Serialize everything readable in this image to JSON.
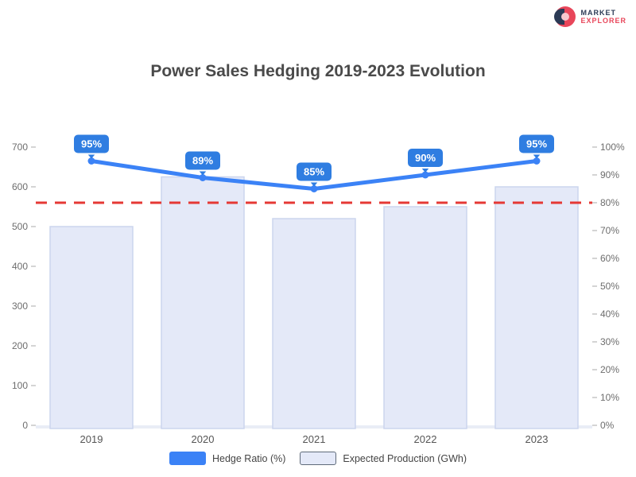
{
  "logo": {
    "line1": "MARKET",
    "line2": "EXPLORER"
  },
  "chart_data": {
    "type": "bar",
    "title": "Power Sales Hedging 2019-2023 Evolution",
    "categories": [
      "2019",
      "2020",
      "2021",
      "2022",
      "2023"
    ],
    "series": [
      {
        "name": "Expected Production (GWh)",
        "type": "bar",
        "axis": "left",
        "values": [
          500,
          625,
          520,
          550,
          600
        ]
      },
      {
        "name": "Hedge Ratio (%)",
        "type": "line",
        "axis": "right",
        "values": [
          95,
          89,
          85,
          90,
          95
        ],
        "point_labels": [
          "95%",
          "89%",
          "85%",
          "90%",
          "95%"
        ]
      }
    ],
    "left_axis": {
      "min": 0,
      "max": 700,
      "step": 100,
      "ticks": [
        0,
        100,
        200,
        300,
        400,
        500,
        600,
        700
      ]
    },
    "right_axis": {
      "min": 0,
      "max": 100,
      "step": 10,
      "ticks": [
        0,
        10,
        20,
        30,
        40,
        50,
        60,
        70,
        80,
        90,
        100
      ],
      "tick_labels": [
        "0%",
        "10%",
        "20%",
        "30%",
        "40%",
        "50%",
        "60%",
        "70%",
        "80%",
        "90%",
        "100%"
      ]
    },
    "threshold": {
      "axis": "right",
      "value": 80,
      "style": "dashed",
      "color": "#e53935"
    },
    "legend_position": "bottom",
    "grid": false,
    "colors": {
      "bar_fill": "#e4e9f8",
      "bar_border": "#ccd5ee",
      "line": "#3b82f6",
      "point_label_box": "#2f7de1",
      "threshold": "#e53935",
      "baseline": "#e9edf6",
      "axis_text": "#6d6d6d",
      "title_text": "#4a4a4a"
    }
  }
}
